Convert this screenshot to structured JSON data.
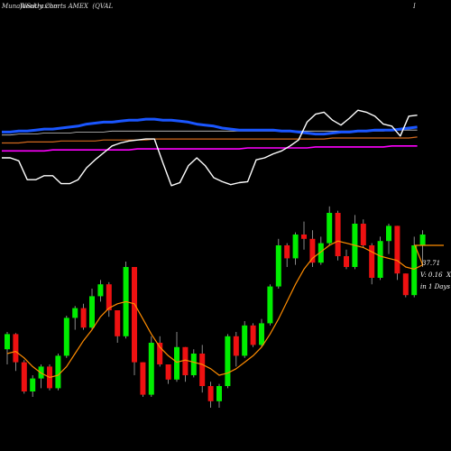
{
  "header": {
    "left_text": "MunafaSutra.com",
    "brand": "Weekly Charts",
    "exchange": "AMEX",
    "symbol": "(QVAL",
    "right_text": "I"
  },
  "info": {
    "price": "37.71",
    "volume": "V: 0.16",
    "x": "X",
    "period": "in 1 Days"
  },
  "colors": {
    "background": "#000000",
    "up": "#00ee00",
    "down": "#ee1111",
    "wick": "#aaaaaa",
    "ma_short": "#ff8c00",
    "ema_blue": "#1a56ff",
    "ma_magenta": "#ff00ff",
    "ma_orange_slow": "#d2691e",
    "indicator_line": "#ffffff"
  },
  "chart_data": [
    {
      "type": "line",
      "title": "",
      "series": [
        {
          "values": [
            50,
            50,
            47,
            28,
            28,
            32,
            32,
            24,
            24,
            28,
            40,
            48,
            55,
            62,
            65,
            67,
            68,
            69,
            69,
            45,
            22,
            25,
            42,
            50,
            42,
            30,
            26,
            23,
            25,
            26,
            48,
            50,
            54,
            57,
            62,
            68,
            86,
            94,
            96,
            88,
            83,
            90,
            98,
            96,
            92,
            84,
            82,
            72,
            92,
            93
          ]
        },
        {
          "values": [
            76,
            76,
            77,
            77,
            78,
            79,
            79,
            80,
            81,
            82,
            84,
            85,
            86,
            86,
            87,
            88,
            88,
            89,
            89,
            88,
            88,
            87,
            86,
            84,
            83,
            82,
            80,
            79,
            78,
            78,
            78,
            78,
            78,
            77,
            77,
            76,
            75,
            74,
            74,
            75,
            76,
            76,
            77,
            77,
            78,
            78,
            78,
            79,
            80,
            81
          ]
        },
        {
          "values": [
            73,
            73,
            74,
            74,
            74,
            75,
            75,
            75,
            75,
            76,
            76,
            76,
            76,
            77,
            77,
            77,
            77,
            77,
            77,
            77,
            77,
            77,
            77,
            77,
            77,
            77,
            77,
            77,
            77,
            77,
            77,
            77,
            77,
            77,
            77,
            77,
            77,
            77,
            77,
            77,
            77,
            77,
            77,
            77,
            77,
            77,
            78,
            78,
            78,
            78
          ]
        },
        {
          "values": [
            65,
            65,
            65,
            66,
            66,
            66,
            66,
            67,
            67,
            67,
            67,
            67,
            68,
            68,
            68,
            68,
            68,
            68,
            69,
            69,
            69,
            69,
            69,
            69,
            69,
            69,
            69,
            69,
            69,
            69,
            69,
            69,
            69,
            69,
            69,
            69,
            69,
            69,
            69,
            70,
            70,
            70,
            70,
            70,
            70,
            70,
            70,
            70,
            70,
            71
          ]
        },
        {
          "values": [
            57,
            57,
            57,
            57,
            57,
            57,
            58,
            58,
            58,
            58,
            58,
            58,
            58,
            58,
            58,
            58,
            59,
            59,
            59,
            59,
            59,
            59,
            59,
            59,
            59,
            59,
            59,
            59,
            59,
            60,
            60,
            60,
            60,
            60,
            60,
            60,
            60,
            61,
            61,
            61,
            61,
            61,
            61,
            61,
            61,
            61,
            62,
            62,
            62,
            62
          ]
        }
      ]
    },
    {
      "type": "candlestick",
      "title": "",
      "ohlc": [
        [
          44,
          60,
          30,
          58
        ],
        [
          58,
          59,
          24,
          32
        ],
        [
          32,
          34,
          3,
          5
        ],
        [
          5,
          20,
          0,
          17
        ],
        [
          17,
          30,
          8,
          28
        ],
        [
          28,
          30,
          6,
          8
        ],
        [
          8,
          40,
          6,
          38
        ],
        [
          38,
          75,
          36,
          73
        ],
        [
          73,
          84,
          62,
          82
        ],
        [
          82,
          86,
          62,
          64
        ],
        [
          64,
          100,
          62,
          93
        ],
        [
          93,
          108,
          88,
          104
        ],
        [
          104,
          106,
          74,
          80
        ],
        [
          80,
          80,
          50,
          56
        ],
        [
          56,
          125,
          54,
          120
        ],
        [
          120,
          120,
          20,
          32
        ],
        [
          32,
          32,
          0,
          2
        ],
        [
          2,
          56,
          0,
          50
        ],
        [
          50,
          56,
          28,
          30
        ],
        [
          30,
          30,
          12,
          16
        ],
        [
          16,
          60,
          14,
          46
        ],
        [
          46,
          46,
          14,
          20
        ],
        [
          20,
          44,
          18,
          40
        ],
        [
          40,
          48,
          4,
          10
        ],
        [
          10,
          14,
          -10,
          -4
        ],
        [
          -4,
          12,
          -10,
          10
        ],
        [
          10,
          58,
          8,
          56
        ],
        [
          56,
          60,
          28,
          38
        ],
        [
          38,
          70,
          36,
          66
        ],
        [
          66,
          68,
          46,
          48
        ],
        [
          48,
          72,
          46,
          68
        ],
        [
          68,
          104,
          66,
          102
        ],
        [
          102,
          146,
          100,
          140
        ],
        [
          140,
          142,
          120,
          128
        ],
        [
          128,
          152,
          122,
          150
        ],
        [
          150,
          162,
          136,
          146
        ],
        [
          146,
          154,
          120,
          124
        ],
        [
          124,
          148,
          122,
          142
        ],
        [
          142,
          176,
          140,
          170
        ],
        [
          170,
          172,
          126,
          130
        ],
        [
          130,
          136,
          118,
          120
        ],
        [
          120,
          168,
          118,
          160
        ],
        [
          160,
          164,
          138,
          140
        ],
        [
          140,
          142,
          104,
          110
        ],
        [
          110,
          148,
          108,
          144
        ],
        [
          144,
          160,
          132,
          158
        ],
        [
          158,
          158,
          108,
          114
        ],
        [
          114,
          114,
          92,
          94
        ],
        [
          94,
          148,
          92,
          140
        ],
        [
          140,
          154,
          120,
          150
        ]
      ],
      "sma": [
        40,
        42,
        36,
        28,
        22,
        18,
        20,
        28,
        40,
        52,
        62,
        74,
        82,
        86,
        88,
        86,
        72,
        58,
        46,
        38,
        32,
        34,
        32,
        30,
        26,
        20,
        22,
        26,
        32,
        38,
        46,
        58,
        72,
        88,
        104,
        118,
        128,
        134,
        140,
        144,
        142,
        140,
        138,
        134,
        130,
        128,
        126,
        120,
        118,
        122
      ],
      "last_price": 37.71
    }
  ]
}
